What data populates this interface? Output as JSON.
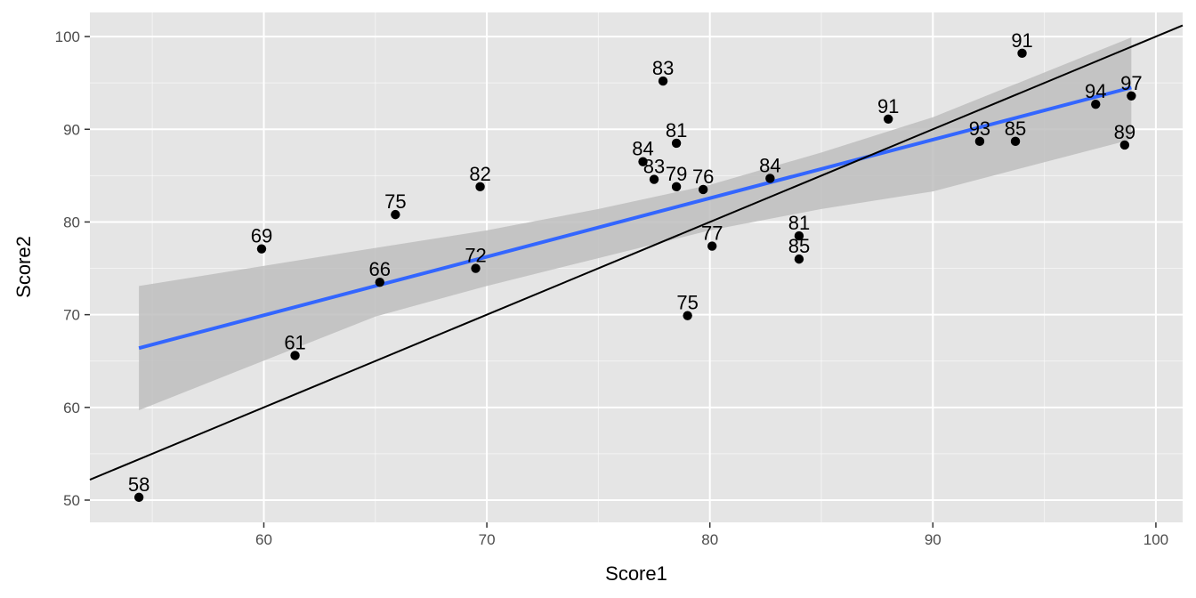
{
  "chart_data": {
    "type": "scatter",
    "title": "",
    "xlabel": "Score1",
    "ylabel": "Score2",
    "xlim": [
      52.2,
      101.2
    ],
    "ylim": [
      47.6,
      102.6
    ],
    "xticks": [
      60,
      70,
      80,
      90,
      100
    ],
    "yticks": [
      50,
      60,
      70,
      80,
      90,
      100
    ],
    "grid": true,
    "points": [
      {
        "x": 54.4,
        "y": 50.3,
        "label": "58"
      },
      {
        "x": 59.9,
        "y": 77.1,
        "label": "69"
      },
      {
        "x": 61.4,
        "y": 65.6,
        "label": "61"
      },
      {
        "x": 65.2,
        "y": 73.5,
        "label": "66"
      },
      {
        "x": 65.9,
        "y": 80.8,
        "label": "75"
      },
      {
        "x": 69.5,
        "y": 75.0,
        "label": "72"
      },
      {
        "x": 69.7,
        "y": 83.8,
        "label": "82"
      },
      {
        "x": 77.0,
        "y": 86.5,
        "label": "84"
      },
      {
        "x": 77.5,
        "y": 84.6,
        "label": "83"
      },
      {
        "x": 77.9,
        "y": 95.2,
        "label": "83"
      },
      {
        "x": 78.5,
        "y": 88.5,
        "label": "81"
      },
      {
        "x": 78.5,
        "y": 83.8,
        "label": "79"
      },
      {
        "x": 79.0,
        "y": 69.9,
        "label": "75"
      },
      {
        "x": 79.7,
        "y": 83.5,
        "label": "76"
      },
      {
        "x": 80.1,
        "y": 77.4,
        "label": "77"
      },
      {
        "x": 82.7,
        "y": 84.7,
        "label": "84"
      },
      {
        "x": 84.0,
        "y": 78.5,
        "label": "81"
      },
      {
        "x": 84.0,
        "y": 76.0,
        "label": "85"
      },
      {
        "x": 88.0,
        "y": 91.1,
        "label": "91"
      },
      {
        "x": 92.1,
        "y": 88.7,
        "label": "93"
      },
      {
        "x": 93.7,
        "y": 88.7,
        "label": "85"
      },
      {
        "x": 94.0,
        "y": 98.2,
        "label": "91"
      },
      {
        "x": 97.3,
        "y": 92.7,
        "label": "94"
      },
      {
        "x": 98.6,
        "y": 88.3,
        "label": "89"
      },
      {
        "x": 98.9,
        "y": 93.6,
        "label": "97"
      }
    ],
    "smooth_line": {
      "x": [
        54.4,
        98.9
      ],
      "y": [
        66.4,
        94.5
      ]
    },
    "confidence_band": {
      "x": [
        54.4,
        65,
        70,
        75,
        80,
        85,
        90,
        98.9
      ],
      "upper": [
        73.1,
        77.2,
        79.1,
        81.4,
        84.0,
        87.5,
        91.3,
        99.9
      ],
      "lower": [
        59.7,
        69.8,
        73.1,
        76.1,
        79.1,
        81.4,
        83.3,
        88.9
      ]
    },
    "reference_line": {
      "slope": 1,
      "intercept": 0
    },
    "colors": {
      "panel_background": "#e5e5e5",
      "grid_major": "#ffffff",
      "points": "#000000",
      "smooth_line": "#3366ff",
      "band_fill": "#bebebe",
      "reference_line": "#000000"
    }
  }
}
